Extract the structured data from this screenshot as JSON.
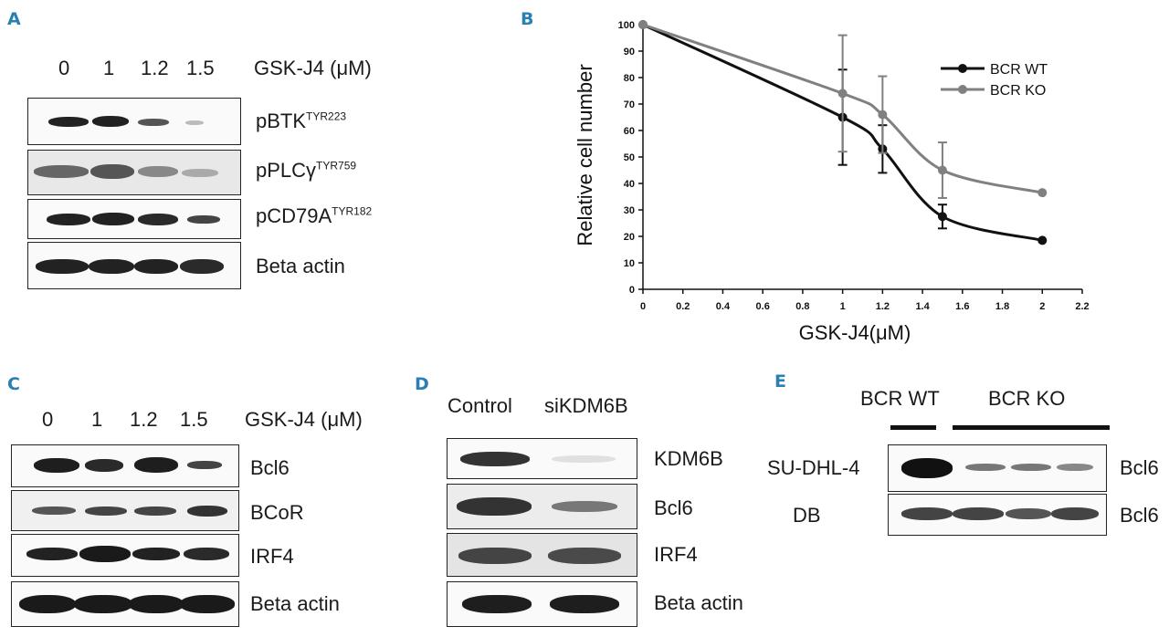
{
  "panels": {
    "A": {
      "letter": "A",
      "lanes": [
        "0",
        "1",
        "1.2",
        "1.5"
      ],
      "treatment_label": "GSK-J4 (μM)",
      "blots": [
        {
          "main": "pBTK",
          "sup": "TYR223"
        },
        {
          "main": "pPLCγ",
          "sup": "TYR759"
        },
        {
          "main": "pCD79A",
          "sup": "TYR182"
        },
        {
          "main": "Beta actin",
          "sup": ""
        }
      ]
    },
    "B": {
      "letter": "B"
    },
    "C": {
      "letter": "C",
      "lanes": [
        "0",
        "1",
        "1.2",
        "1.5"
      ],
      "treatment_label": "GSK-J4 (μM)",
      "blots": [
        "Bcl6",
        "BCoR",
        "IRF4",
        "Beta actin"
      ]
    },
    "D": {
      "letter": "D",
      "lanes": [
        "Control",
        "siKDM6B"
      ],
      "blots": [
        "KDM6B",
        "Bcl6",
        "IRF4",
        "Beta actin"
      ]
    },
    "E": {
      "letter": "E",
      "groups": [
        "BCR WT",
        "BCR KO"
      ],
      "rows": [
        {
          "cell_line": "SU-DHL-4",
          "protein": "Bcl6"
        },
        {
          "cell_line": "DB",
          "protein": "Bcl6"
        }
      ]
    }
  },
  "chart_data": {
    "type": "line",
    "title": "",
    "xlabel": "GSK-J4(μM)",
    "ylabel": "Relative cell number",
    "xlim": [
      0,
      2.2
    ],
    "ylim": [
      0,
      100
    ],
    "x_ticks": [
      "0",
      "0.2",
      "0.4",
      "0.6",
      "0.8",
      "1",
      "1.2",
      "1.4",
      "1.6",
      "1.8",
      "2",
      "2.2"
    ],
    "y_ticks": [
      "0",
      "10",
      "20",
      "30",
      "40",
      "50",
      "60",
      "70",
      "80",
      "90",
      "100"
    ],
    "legend_position": "top-right",
    "series": [
      {
        "name": "BCR WT",
        "color": "#111111",
        "x": [
          0,
          1,
          1.2,
          1.5,
          2
        ],
        "y": [
          100,
          65,
          53,
          27.5,
          18.5
        ],
        "err": [
          0,
          18,
          9,
          4.5,
          0
        ]
      },
      {
        "name": "BCR KO",
        "color": "#808080",
        "x": [
          0,
          1,
          1.2,
          1.5,
          2
        ],
        "y": [
          100,
          74,
          66,
          45,
          36.5
        ],
        "err": [
          0,
          22,
          14.5,
          10.5,
          0
        ]
      }
    ]
  }
}
